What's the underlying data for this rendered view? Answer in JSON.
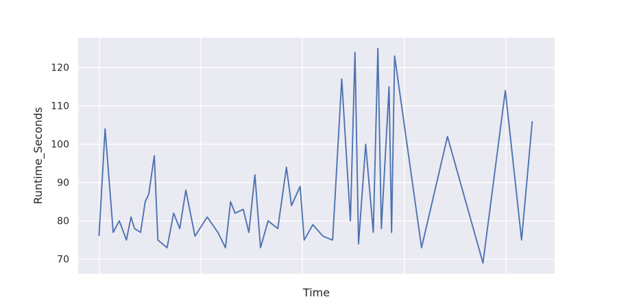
{
  "chart_data": {
    "type": "line",
    "title": "",
    "xlabel": "Time",
    "ylabel": "Runtime_Seconds",
    "ylim": [
      66.2,
      127.8
    ],
    "y_ticks": [
      70,
      80,
      90,
      100,
      110,
      120
    ],
    "x_tick_labels": [],
    "grid": true,
    "series": [
      {
        "color": "#4c72b0",
        "points": [
          [
            0.0,
            76
          ],
          [
            1.2,
            104
          ],
          [
            2.8,
            77
          ],
          [
            4.0,
            80
          ],
          [
            5.4,
            75
          ],
          [
            6.3,
            81
          ],
          [
            7.0,
            78
          ],
          [
            8.2,
            77
          ],
          [
            9.1,
            85
          ],
          [
            9.8,
            87
          ],
          [
            10.9,
            97
          ],
          [
            11.6,
            75
          ],
          [
            13.4,
            73
          ],
          [
            14.7,
            82
          ],
          [
            15.9,
            78
          ],
          [
            17.1,
            88
          ],
          [
            18.9,
            76
          ],
          [
            21.3,
            81
          ],
          [
            23.4,
            77
          ],
          [
            24.9,
            73
          ],
          [
            25.9,
            85
          ],
          [
            26.8,
            82
          ],
          [
            28.4,
            83
          ],
          [
            29.5,
            77
          ],
          [
            30.7,
            92
          ],
          [
            31.8,
            73
          ],
          [
            33.3,
            80
          ],
          [
            35.2,
            78
          ],
          [
            36.9,
            94
          ],
          [
            37.9,
            84
          ],
          [
            39.6,
            89
          ],
          [
            40.4,
            75
          ],
          [
            42.1,
            79
          ],
          [
            44.1,
            76
          ],
          [
            46.0,
            75
          ],
          [
            47.8,
            117
          ],
          [
            49.5,
            80
          ],
          [
            50.4,
            124
          ],
          [
            51.1,
            74
          ],
          [
            52.5,
            100
          ],
          [
            54.0,
            77
          ],
          [
            54.9,
            125
          ],
          [
            55.6,
            78
          ],
          [
            57.1,
            115
          ],
          [
            57.6,
            77
          ],
          [
            58.2,
            123
          ],
          [
            63.5,
            73
          ],
          [
            68.6,
            102
          ],
          [
            75.6,
            69
          ],
          [
            80.0,
            114
          ],
          [
            83.2,
            75
          ],
          [
            85.3,
            106
          ]
        ]
      }
    ]
  }
}
